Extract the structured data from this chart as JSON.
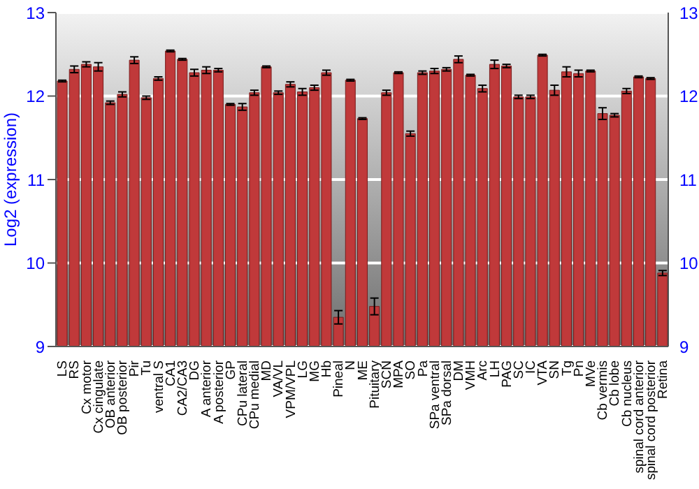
{
  "chart_data": {
    "type": "bar",
    "ylabel": "Log2 (expression)",
    "categories": [
      "LS",
      "RS",
      "Cx motor",
      "Cx cingulate",
      "OB anterior",
      "OB posterior",
      "Pir",
      "Tu",
      "ventral S",
      "CA1",
      "CA2/CA3",
      "DG",
      "A anterior",
      "A posterior",
      "GP",
      "CPu lateral",
      "CPu medial",
      "MD",
      "VA/VL",
      "VPM/VPL",
      "LG",
      "MG",
      "Hb",
      "Pineal",
      "N",
      "ME",
      "Pituitary",
      "SCN",
      "MPA",
      "SO",
      "Pa",
      "SPa ventral",
      "SPa dorsal",
      "DM",
      "VMH",
      "Arc",
      "LH",
      "PAG",
      "SC",
      "IC",
      "VTA",
      "SN",
      "Tg",
      "Pn",
      "MVe",
      "Cb vermis",
      "Cb lobe",
      "Cb nucleus",
      "spinal cord anterior",
      "spinal cord posterior",
      "Retina"
    ],
    "values": [
      12.18,
      12.32,
      12.38,
      12.35,
      11.92,
      12.02,
      12.43,
      11.98,
      12.21,
      12.54,
      12.44,
      12.28,
      12.31,
      12.31,
      11.9,
      11.87,
      12.04,
      12.35,
      12.04,
      12.14,
      12.05,
      12.1,
      12.28,
      9.35,
      12.19,
      11.73,
      9.48,
      12.04,
      12.28,
      11.55,
      12.28,
      12.3,
      12.32,
      12.44,
      12.25,
      12.09,
      12.38,
      12.36,
      11.99,
      11.99,
      12.49,
      12.07,
      12.29,
      12.27,
      12.3,
      11.79,
      11.77,
      12.06,
      12.23,
      12.21,
      9.88
    ],
    "errors": [
      0.01,
      0.04,
      0.03,
      0.05,
      0.02,
      0.03,
      0.04,
      0.02,
      0.02,
      0.01,
      0.01,
      0.04,
      0.04,
      0.02,
      0.01,
      0.04,
      0.03,
      0.01,
      0.02,
      0.03,
      0.04,
      0.03,
      0.03,
      0.08,
      0.01,
      0.01,
      0.1,
      0.03,
      0.01,
      0.03,
      0.02,
      0.03,
      0.02,
      0.04,
      0.01,
      0.04,
      0.05,
      0.02,
      0.02,
      0.02,
      0.01,
      0.06,
      0.06,
      0.04,
      0.01,
      0.07,
      0.02,
      0.03,
      0.01,
      0.01,
      0.03
    ],
    "color": "#c0393a",
    "ylim": [
      9,
      13
    ],
    "yticks": [
      9,
      10,
      11,
      12,
      13
    ],
    "y2lim": [
      9,
      13
    ],
    "y2ticks": [
      9,
      10,
      11,
      12,
      13
    ],
    "grid": "y"
  }
}
